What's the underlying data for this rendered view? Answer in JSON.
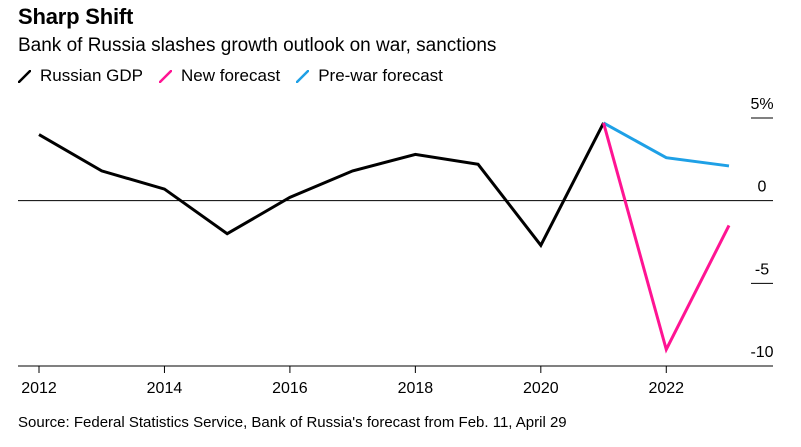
{
  "chart_data": {
    "type": "line",
    "title": "Sharp Shift",
    "subtitle": "Bank of Russia slashes growth outlook on war, sanctions",
    "source": "Source: Federal Statistics Service, Bank of Russia's forecast from Feb. 11, April 29",
    "xlabel": "",
    "ylabel": "",
    "xlim": [
      2012,
      2023
    ],
    "ylim": [
      -10,
      5
    ],
    "x_ticks": [
      2012,
      2014,
      2016,
      2018,
      2020,
      2022
    ],
    "x_tick_labels": [
      "2012",
      "2014",
      "2016",
      "2018",
      "2020",
      "2022"
    ],
    "y_ticks": [
      5,
      0,
      -5,
      -10
    ],
    "y_tick_labels": [
      "5%",
      "0",
      "-5",
      "-10"
    ],
    "zero_line": true,
    "legend_position": "top-left",
    "series": [
      {
        "name": "Russian GDP",
        "color": "#000000",
        "x": [
          2012,
          2013,
          2014,
          2015,
          2016,
          2017,
          2018,
          2019,
          2020,
          2021
        ],
        "values": [
          4.0,
          1.8,
          0.7,
          -2.0,
          0.2,
          1.8,
          2.8,
          2.2,
          -2.7,
          4.7
        ]
      },
      {
        "name": "New forecast",
        "color": "#ff1493",
        "x": [
          2021,
          2022,
          2023
        ],
        "values": [
          4.7,
          -9.0,
          -1.5
        ]
      },
      {
        "name": "Pre-war forecast",
        "color": "#1ea0e6",
        "x": [
          2021,
          2022,
          2023
        ],
        "values": [
          4.7,
          2.6,
          2.1
        ]
      }
    ]
  }
}
